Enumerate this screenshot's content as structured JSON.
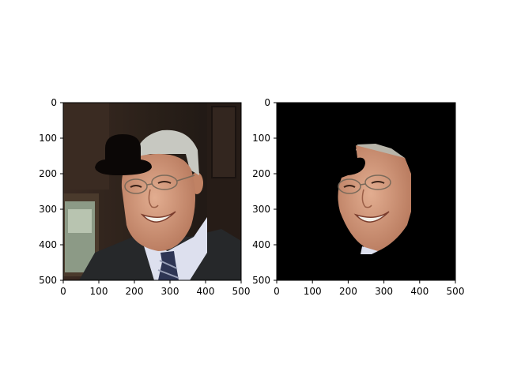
{
  "chart_data": [
    {
      "type": "image",
      "title": "",
      "xlabel": "",
      "ylabel": "",
      "xlim": [
        0,
        500
      ],
      "ylim": [
        500,
        0
      ],
      "xticks": [
        0,
        100,
        200,
        300,
        400,
        500
      ],
      "yticks": [
        0,
        100,
        200,
        300,
        400,
        500
      ],
      "xtick_labels": [
        "0",
        "100",
        "200",
        "300",
        "400",
        "500"
      ],
      "ytick_labels": [
        "0",
        "100",
        "200",
        "300",
        "400",
        "500"
      ],
      "grid": false,
      "content": "portrait photo with a black hat-shaped occlusion drawn over the head"
    },
    {
      "type": "image",
      "title": "",
      "xlabel": "",
      "ylabel": "",
      "xlim": [
        0,
        500
      ],
      "ylim": [
        500,
        0
      ],
      "xticks": [
        0,
        100,
        200,
        300,
        400,
        500
      ],
      "yticks": [
        0,
        100,
        200,
        300,
        400,
        500
      ],
      "xtick_labels": [
        "0",
        "100",
        "200",
        "300",
        "400",
        "500"
      ],
      "ytick_labels": [
        "0",
        "100",
        "200",
        "300",
        "400",
        "500"
      ],
      "grid": false,
      "content": "segmented face region on a black background, remainder masked out"
    }
  ],
  "colors": {
    "background_dark": "#2a2220",
    "wall_wood": "#3b2c25",
    "hat": "#0b0706",
    "skin": "#d49a7c",
    "hair": "#c7c8c1",
    "suit": "#26282a",
    "shirt": "#dde0ee",
    "tie": "#2e3554",
    "mask_background": "#000000"
  }
}
